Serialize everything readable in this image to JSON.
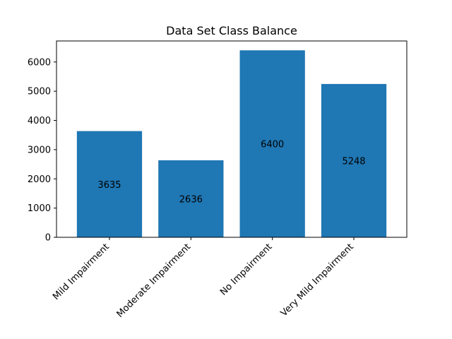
{
  "chart_data": {
    "type": "bar",
    "title": "Data Set Class Balance",
    "xlabel": "",
    "ylabel": "",
    "categories": [
      "Mild Impairment",
      "Moderate Impairment",
      "No Impairment",
      "Very Mild Impairment"
    ],
    "values": [
      3635,
      2636,
      6400,
      5248
    ],
    "data_labels": [
      "3635",
      "2636",
      "6400",
      "5248"
    ],
    "yticks": [
      0,
      1000,
      2000,
      3000,
      4000,
      5000,
      6000
    ],
    "ylim": [
      0,
      6720
    ],
    "grid": false,
    "legend": "none",
    "bar_color": "#1f77b4",
    "xtick_rotation_deg": 45
  }
}
